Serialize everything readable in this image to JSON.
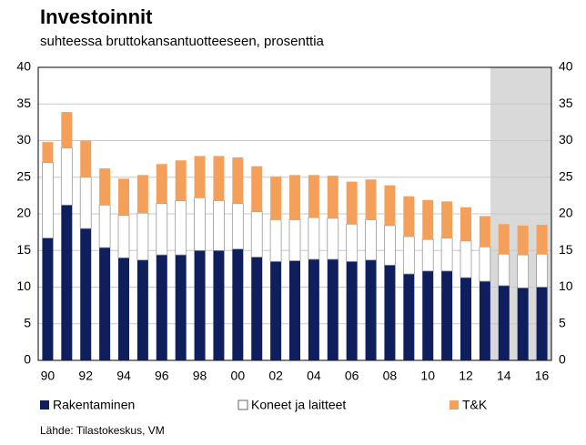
{
  "chart_data": {
    "type": "stacked_bar",
    "title": "Investoinnit",
    "subtitle": "suhteessa bruttokansantuotteeseen, prosenttia",
    "source": "Lähde: Tilastokeskus, VM",
    "categories": [
      "90",
      null,
      "92",
      null,
      "94",
      null,
      "96",
      null,
      "98",
      null,
      "00",
      null,
      "02",
      null,
      "04",
      null,
      "06",
      null,
      "08",
      null,
      "10",
      null,
      "12",
      null,
      "14",
      null,
      "16"
    ],
    "series": [
      {
        "name": "Rakentaminen",
        "color": "#0f1f5e",
        "values": [
          16.7,
          21.2,
          18,
          15.4,
          14,
          13.7,
          14.4,
          14.4,
          15,
          15,
          15.2,
          14.1,
          13.5,
          13.6,
          13.8,
          13.8,
          13.5,
          13.7,
          13,
          11.8,
          12.2,
          12.2,
          11.3,
          10.8,
          10.2,
          9.9,
          10
        ]
      },
      {
        "name": "Koneet ja laitteet",
        "color": "#ffffff",
        "values": [
          10.3,
          7.8,
          7,
          5.8,
          5.8,
          6.4,
          7,
          7.4,
          7.2,
          6.8,
          6.2,
          6.2,
          5.7,
          5.6,
          5.7,
          5.6,
          5.1,
          5.5,
          5.4,
          5.1,
          4.3,
          4.5,
          5,
          4.7,
          4.3,
          4.5,
          4.5
        ]
      },
      {
        "name": "T&K",
        "color": "#f4a05a",
        "values": [
          2.8,
          4.9,
          5,
          5,
          5,
          5.2,
          5.4,
          5.5,
          5.7,
          6.1,
          6.3,
          6.2,
          5.9,
          6.1,
          5.8,
          5.8,
          5.8,
          5.5,
          5.5,
          5.5,
          5.4,
          5,
          4.6,
          4.2,
          4.1,
          4,
          4
        ]
      }
    ],
    "ylim": [
      0,
      40
    ],
    "yticks": [
      0,
      5,
      10,
      15,
      20,
      25,
      30,
      35,
      40
    ],
    "y2lim": [
      0,
      40
    ],
    "y2ticks": [
      0,
      5,
      10,
      15,
      20,
      25,
      30,
      35,
      40
    ],
    "grid": true
  }
}
